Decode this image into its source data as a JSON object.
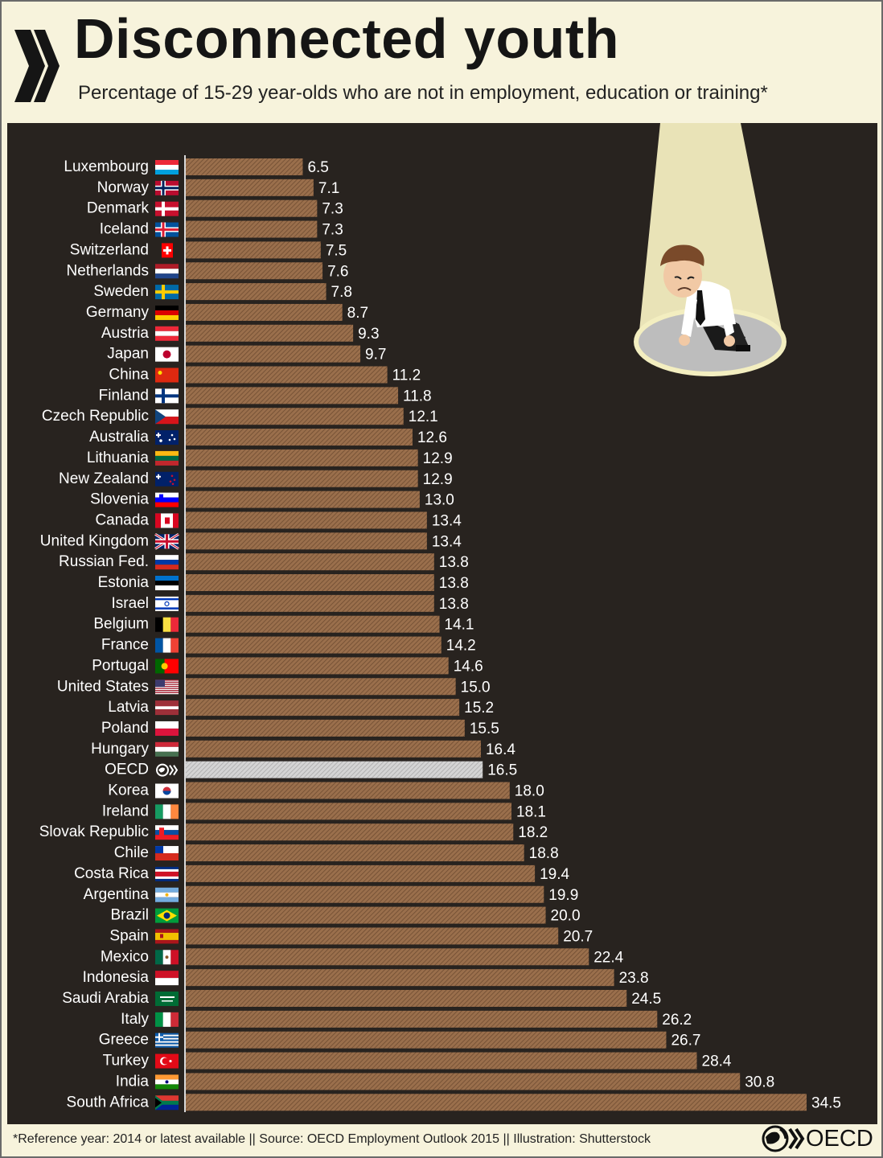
{
  "header": {
    "title": "Disconnected youth",
    "subtitle": "Percentage of 15-29 year-olds who are not in employment, education or training*"
  },
  "footer": {
    "footnote": "*Reference year: 2014 or latest available || Source: OECD Employment Outlook 2015 || Illustration: Shutterstock",
    "logo_text": "OECD"
  },
  "colors": {
    "bar": "#9a6f4c",
    "bar_highlight": "#cfcfcf",
    "panel_bg": "#28231f",
    "page_bg": "#f7f3dc",
    "label_text": "#ffffff"
  },
  "illustration": "person-under-spotlight",
  "chart_data": {
    "type": "bar",
    "orientation": "horizontal",
    "title": "Disconnected youth",
    "categories": [
      "Luxembourg",
      "Norway",
      "Denmark",
      "Iceland",
      "Switzerland",
      "Netherlands",
      "Sweden",
      "Germany",
      "Austria",
      "Japan",
      "China",
      "Finland",
      "Czech Republic",
      "Australia",
      "Lithuania",
      "New Zealand",
      "Slovenia",
      "Canada",
      "United Kingdom",
      "Russian Fed.",
      "Estonia",
      "Israel",
      "Belgium",
      "France",
      "Portugal",
      "United States",
      "Latvia",
      "Poland",
      "Hungary",
      "OECD",
      "Korea",
      "Ireland",
      "Slovak Republic",
      "Chile",
      "Costa Rica",
      "Argentina",
      "Brazil",
      "Spain",
      "Mexico",
      "Indonesia",
      "Saudi Arabia",
      "Italy",
      "Greece",
      "Turkey",
      "India",
      "South Africa"
    ],
    "values": [
      6.5,
      7.1,
      7.3,
      7.3,
      7.5,
      7.6,
      7.8,
      8.7,
      9.3,
      9.7,
      11.2,
      11.8,
      12.1,
      12.6,
      12.9,
      12.9,
      13.0,
      13.4,
      13.4,
      13.8,
      13.8,
      13.8,
      14.1,
      14.2,
      14.6,
      15.0,
      15.2,
      15.5,
      16.4,
      16.5,
      18.0,
      18.1,
      18.2,
      18.8,
      19.4,
      19.9,
      20.0,
      20.7,
      22.4,
      23.8,
      24.5,
      26.2,
      26.7,
      28.4,
      30.8,
      34.5
    ],
    "value_labels": [
      "6.5",
      "7.1",
      "7.3",
      "7.3",
      "7.5",
      "7.6",
      "7.8",
      "8.7",
      "9.3",
      "9.7",
      "11.2",
      "11.8",
      "12.1",
      "12.6",
      "12.9",
      "12.9",
      "13.0",
      "13.4",
      "13.4",
      "13.8",
      "13.8",
      "13.8",
      "14.1",
      "14.2",
      "14.6",
      "15.0",
      "15.2",
      "15.5",
      "16.4",
      "16.5",
      "18.0",
      "18.1",
      "18.2",
      "18.8",
      "19.4",
      "19.9",
      "20.0",
      "20.7",
      "22.4",
      "23.8",
      "24.5",
      "26.2",
      "26.7",
      "28.4",
      "30.8",
      "34.5"
    ],
    "highlight": "OECD",
    "xlim": [
      0,
      34.5
    ],
    "unit": "%",
    "grid": false,
    "legend": "none",
    "flags": [
      "luxembourg",
      "norway",
      "denmark",
      "iceland",
      "switzerland",
      "netherlands",
      "sweden",
      "germany",
      "austria",
      "japan",
      "china",
      "finland",
      "czech",
      "australia",
      "lithuania",
      "newzealand",
      "slovenia",
      "canada",
      "uk",
      "russia",
      "estonia",
      "israel",
      "belgium",
      "france",
      "portugal",
      "usa",
      "latvia",
      "poland",
      "hungary",
      "oecd",
      "korea",
      "ireland",
      "slovakia",
      "chile",
      "costarica",
      "argentina",
      "brazil",
      "spain",
      "mexico",
      "indonesia",
      "saudi",
      "italy",
      "greece",
      "turkey",
      "india",
      "southafrica"
    ]
  }
}
